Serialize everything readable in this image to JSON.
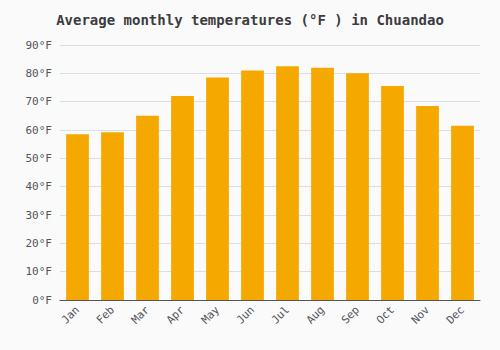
{
  "chart_data": {
    "type": "bar",
    "title": "Average monthly temperatures (°F ) in Chuandao",
    "categories": [
      "Jan",
      "Feb",
      "Mar",
      "Apr",
      "May",
      "Jun",
      "Jul",
      "Aug",
      "Sep",
      "Oct",
      "Nov",
      "Dec"
    ],
    "values": [
      58.5,
      59.2,
      65.0,
      72.0,
      78.5,
      81.0,
      82.5,
      82.0,
      80.0,
      75.5,
      68.5,
      61.5
    ],
    "color": "#F5A800",
    "ylim": [
      0,
      90
    ],
    "yticks": [
      {
        "value": 0,
        "label": "0°F"
      },
      {
        "value": 10,
        "label": "10°F"
      },
      {
        "value": 20,
        "label": "20°F"
      },
      {
        "value": 30,
        "label": "30°F"
      },
      {
        "value": 40,
        "label": "40°F"
      },
      {
        "value": 50,
        "label": "50°F"
      },
      {
        "value": 60,
        "label": "60°F"
      },
      {
        "value": 70,
        "label": "70°F"
      },
      {
        "value": 80,
        "label": "80°F"
      },
      {
        "value": 90,
        "label": "90°F"
      }
    ],
    "grid": true
  }
}
